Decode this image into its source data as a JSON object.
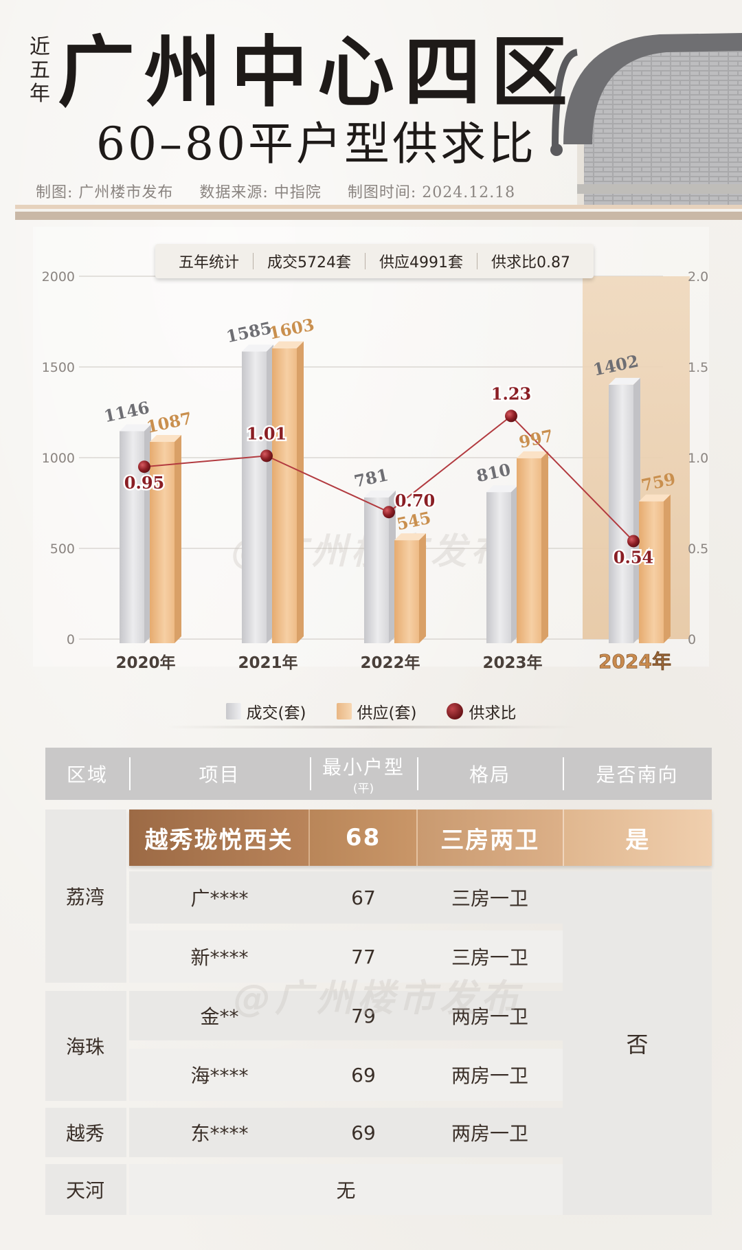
{
  "header": {
    "side_title": [
      "近",
      "五",
      "年"
    ],
    "main_title": "广州中心四区",
    "sub_title": "60–80平户型供求比",
    "meta": {
      "producer": "制图: 广州楼市发布",
      "source": "数据来源: 中指院",
      "date": "制图时间: 2024.12.18"
    }
  },
  "summary": {
    "label": "五年统计",
    "deals": "成交5724套",
    "supply": "供应4991套",
    "ratio": "供求比0.87"
  },
  "watermark": "@广州楼市发布",
  "colors": {
    "deal_bar": "#d9d9dc",
    "supply_bar": "#f0c89b",
    "ratio_line": "#b23a3f",
    "highlight_band": "#ecd2b3",
    "label_deal": "#6e6e73",
    "label_supply": "#c98f4e",
    "label_ratio": "#8a1e24"
  },
  "chart_data": {
    "type": "bar",
    "categories": [
      "2020年",
      "2021年",
      "2022年",
      "2023年",
      "2024年"
    ],
    "highlight_category": "2024年",
    "series": [
      {
        "name": "成交(套)",
        "type": "bar",
        "values": [
          1146,
          1585,
          781,
          810,
          1402
        ]
      },
      {
        "name": "供应(套)",
        "type": "bar",
        "values": [
          1087,
          1603,
          545,
          997,
          759
        ]
      },
      {
        "name": "供求比",
        "type": "line",
        "axis": "right",
        "values": [
          0.95,
          1.01,
          0.7,
          1.23,
          0.54
        ]
      }
    ],
    "value_labels": {
      "deal": [
        "1146",
        "1585",
        "781",
        "810",
        "1402"
      ],
      "supply": [
        "1087",
        "1603",
        "545",
        "997",
        "759"
      ],
      "ratio": [
        "0.95",
        "1.01",
        "0.70",
        "1.23",
        "0.54"
      ]
    },
    "ylim_left": [
      0,
      2000
    ],
    "ylim_right": [
      0,
      2.0
    ],
    "yticks_left": [
      "2000",
      "1500",
      "1000",
      "500",
      "0"
    ],
    "yticks_right": [
      "2.0",
      "1.5",
      "1.0",
      "0.5",
      "0"
    ],
    "grid": true,
    "legend_position": "bottom"
  },
  "legend": {
    "deal": "成交(套)",
    "supply": "供应(套)",
    "ratio": "供求比"
  },
  "table": {
    "headers": {
      "region": "区域",
      "project": "项目",
      "min_unit": "最小户型",
      "min_unit_unit": "(平)",
      "layout": "格局",
      "south": "是否南向"
    },
    "highlight_row": {
      "project": "越秀珑悦西关",
      "size": "68",
      "layout": "三房两卫",
      "south": "是"
    },
    "rows": [
      {
        "project": "广****",
        "size": "67",
        "layout": "三房一卫"
      },
      {
        "project": "新****",
        "size": "77",
        "layout": "三房一卫"
      },
      {
        "project": "金**",
        "size": "79",
        "layout": "两房一卫"
      },
      {
        "project": "海****",
        "size": "69",
        "layout": "两房一卫"
      },
      {
        "project": "东****",
        "size": "69",
        "layout": "两房一卫"
      }
    ],
    "regions": [
      "荔湾",
      "海珠",
      "越秀",
      "天河"
    ],
    "tianhe_value": "无",
    "south_no": "否"
  }
}
